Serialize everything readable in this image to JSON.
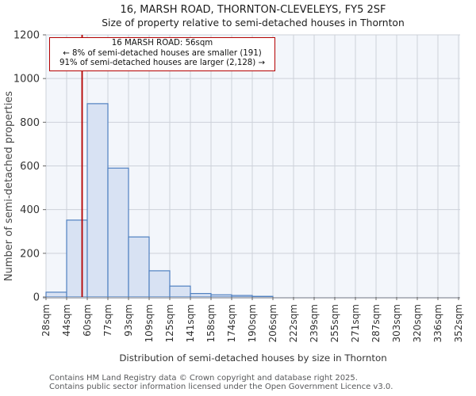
{
  "chart_data": {
    "type": "bar",
    "title": "16, MARSH ROAD, THORNTON-CLEVELEYS, FY5 2SF",
    "subtitle": "Size of property relative to semi-detached houses in Thornton",
    "xlabel": "Distribution of semi-detached houses by size in Thornton",
    "ylabel": "Number of semi-detached properties",
    "bin_edges_sqm": [
      28,
      44,
      60,
      77,
      93,
      109,
      125,
      141,
      158,
      174,
      190,
      206,
      222,
      239,
      255,
      271,
      287,
      303,
      320,
      336,
      352
    ],
    "bin_labels": [
      "28sqm",
      "44sqm",
      "60sqm",
      "77sqm",
      "93sqm",
      "109sqm",
      "125sqm",
      "141sqm",
      "158sqm",
      "174sqm",
      "190sqm",
      "206sqm",
      "222sqm",
      "239sqm",
      "255sqm",
      "271sqm",
      "287sqm",
      "303sqm",
      "320sqm",
      "336sqm",
      "352sqm"
    ],
    "values": [
      22,
      352,
      885,
      590,
      275,
      120,
      50,
      16,
      10,
      7,
      3,
      0,
      0,
      0,
      0,
      0,
      0,
      0,
      0,
      0
    ],
    "ylim": [
      0,
      1200
    ],
    "yticks": [
      0,
      200,
      400,
      600,
      800,
      1000,
      1200
    ],
    "grid": true,
    "legend": false,
    "colors": {
      "bar_fill": "#d8e2f3",
      "bar_stroke": "#5080c0",
      "plot_bg": "#f3f6fb",
      "grid": "#cdd1da",
      "axis_line": "#b3b7bf",
      "tick": "#666666",
      "tick_label": "#333333"
    }
  },
  "marker": {
    "label": "16 MARSH ROAD",
    "value_sqm": 56,
    "color": "#b40000"
  },
  "annotation": {
    "line1": "16 MARSH ROAD: 56sqm",
    "line2": "← 8% of semi-detached houses are smaller (191)",
    "line3": "91% of semi-detached houses are larger (2,128) →"
  },
  "footer": {
    "line1": "Contains HM Land Registry data © Crown copyright and database right 2025.",
    "line2": "Contains public sector information licensed under the Open Government Licence v3.0."
  }
}
